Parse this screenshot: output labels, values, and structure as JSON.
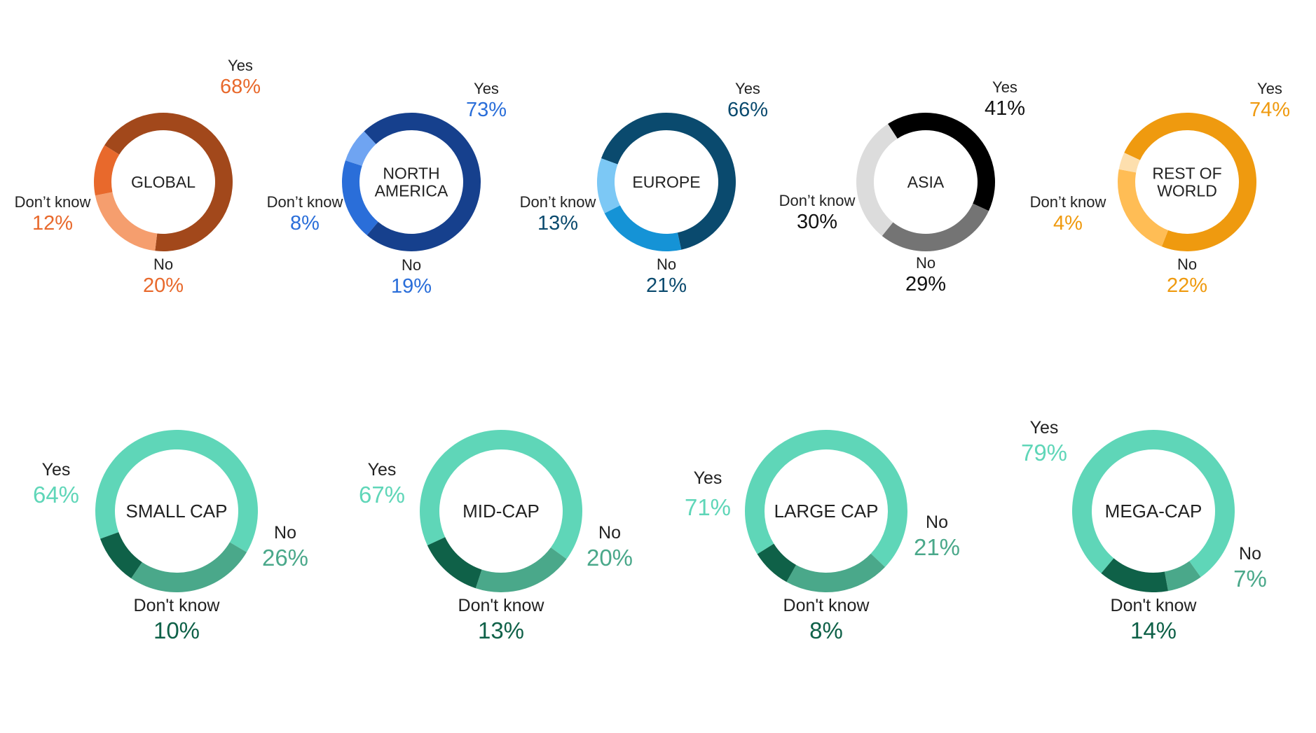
{
  "chart_data": [
    {
      "type": "pie",
      "variant": "donut",
      "title": "GLOBAL",
      "center_label": [
        "GLOBAL"
      ],
      "categories": [
        "Yes",
        "No",
        "Don’t know"
      ],
      "values": [
        68,
        20,
        12
      ],
      "value_labels": [
        "68%",
        "20%",
        "12%"
      ],
      "colors": [
        "#a2481b",
        "#f59e6e",
        "#e8692c"
      ],
      "label_color": "#e8692c"
    },
    {
      "type": "pie",
      "variant": "donut",
      "title": "NORTH AMERICA",
      "center_label": [
        "NORTH",
        "AMERICA"
      ],
      "categories": [
        "Yes",
        "No",
        "Don’t know"
      ],
      "values": [
        73,
        19,
        8
      ],
      "value_labels": [
        "73%",
        "19%",
        "8%"
      ],
      "colors": [
        "#16408d",
        "#2a6ed9",
        "#6fa4f2"
      ],
      "label_color": "#2a6ed9"
    },
    {
      "type": "pie",
      "variant": "donut",
      "title": "EUROPE",
      "center_label": [
        "EUROPE"
      ],
      "categories": [
        "Yes",
        "No",
        "Don’t know"
      ],
      "values": [
        66,
        21,
        13
      ],
      "value_labels": [
        "66%",
        "21%",
        "13%"
      ],
      "colors": [
        "#0a4a6e",
        "#1593d6",
        "#7cc8f5"
      ],
      "label_color": "#0a4a6e"
    },
    {
      "type": "pie",
      "variant": "donut",
      "title": "ASIA",
      "center_label": [
        "ASIA"
      ],
      "categories": [
        "Yes",
        "No",
        "Don’t know"
      ],
      "values": [
        41,
        29,
        30
      ],
      "value_labels": [
        "41%",
        "29%",
        "30%"
      ],
      "colors": [
        "#000000",
        "#747474",
        "#dcdcdc"
      ],
      "label_color": "#111111"
    },
    {
      "type": "pie",
      "variant": "donut",
      "title": "REST OF WORLD",
      "center_label": [
        "REST OF",
        "WORLD"
      ],
      "categories": [
        "Yes",
        "No",
        "Don’t know"
      ],
      "values": [
        74,
        22,
        4
      ],
      "value_labels": [
        "74%",
        "22%",
        "4%"
      ],
      "colors": [
        "#ef9a0f",
        "#ffbd55",
        "#fddfae"
      ],
      "label_color": "#ef9a0f"
    },
    {
      "type": "pie",
      "variant": "donut",
      "title": "SMALL CAP",
      "center_label": [
        "SMALL CAP"
      ],
      "categories": [
        "Yes",
        "No",
        "Don't know"
      ],
      "values": [
        64,
        26,
        10
      ],
      "value_labels": [
        "64%",
        "26%",
        "10%"
      ],
      "colors": [
        "#5fd6b8",
        "#4aa88a",
        "#0f6148"
      ]
    },
    {
      "type": "pie",
      "variant": "donut",
      "title": "MID-CAP",
      "center_label": [
        "MID-CAP"
      ],
      "categories": [
        "Yes",
        "No",
        "Don't know"
      ],
      "values": [
        67,
        20,
        13
      ],
      "value_labels": [
        "67%",
        "20%",
        "13%"
      ],
      "colors": [
        "#5fd6b8",
        "#4aa88a",
        "#0f6148"
      ]
    },
    {
      "type": "pie",
      "variant": "donut",
      "title": "LARGE CAP",
      "center_label": [
        "LARGE CAP"
      ],
      "categories": [
        "Yes",
        "No",
        "Don't know"
      ],
      "values": [
        71,
        21,
        8
      ],
      "value_labels": [
        "71%",
        "21%",
        "8%"
      ],
      "colors": [
        "#5fd6b8",
        "#4aa88a",
        "#0f6148"
      ]
    },
    {
      "type": "pie",
      "variant": "donut",
      "title": "MEGA-CAP",
      "center_label": [
        "MEGA-CAP"
      ],
      "categories": [
        "Yes",
        "No",
        "Don't know"
      ],
      "values": [
        79,
        7,
        14
      ],
      "value_labels": [
        "79%",
        "7%",
        "14%"
      ],
      "colors": [
        "#5fd6b8",
        "#4aa88a",
        "#0f6148"
      ]
    }
  ]
}
